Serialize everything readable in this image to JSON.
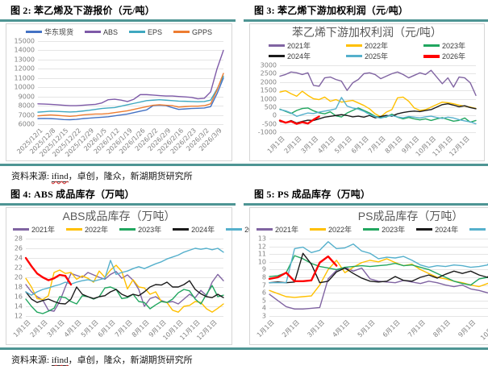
{
  "figures": [
    {
      "header": "图 2: 苯乙烯及下游报价（元/吨）"
    },
    {
      "header": "图 3: 苯乙烯下游加权利润（元/吨）"
    },
    {
      "header": "图 4: ABS 成品库存（万吨）"
    },
    {
      "header": "图 5: PS 成品库存（万吨）"
    }
  ],
  "source": {
    "prefix": "资料来源: ",
    "link": "ifind",
    "rest": "，卓创，隆众，新湖期货研究所"
  },
  "colors": {
    "accent_teal_rule": "#4E9594",
    "panel_border": "#D6D6D6",
    "grid": "#E5E5E5",
    "axis_text": "#808080",
    "title_text": "#595959"
  },
  "chart_data": [
    {
      "type": "line",
      "title": "",
      "legend_position": "top",
      "ylim": [
        6000,
        15000
      ],
      "y_step": 1000,
      "grid": true,
      "last_label_frac": 0.9655,
      "categories": [
        "2025/12/1",
        "2025/12/8",
        "2025/12/15",
        "2025/12/22",
        "2025/12/29",
        "2026/1/5",
        "2026/1/12",
        "2026/1/19",
        "2026/1/26",
        "2026/2/2",
        "2026/2/9",
        "2026/2/16",
        "2026/2/23",
        "2026/3/2",
        "2026/3/9"
      ],
      "series": [
        {
          "name": "华东现货",
          "color": "#4472C4",
          "width": 1.4,
          "values": [
            6600,
            6620,
            6600,
            6560,
            6500,
            6480,
            6520,
            6600,
            6650,
            6700,
            6750,
            6800,
            6900,
            7000,
            7100,
            7250,
            7400,
            7550,
            8000,
            8050,
            8000,
            7800,
            7600,
            7650,
            7700,
            7720,
            7750,
            7900,
            9300,
            11000
          ]
        },
        {
          "name": "ABS",
          "color": "#7E5AA8",
          "width": 1.4,
          "values": [
            8200,
            8180,
            8150,
            8100,
            8050,
            8000,
            8000,
            8050,
            8100,
            8150,
            8300,
            8650,
            8700,
            8600,
            8450,
            8700,
            9200,
            9200,
            9150,
            9100,
            9050,
            9050,
            9000,
            8950,
            8900,
            8750,
            8800,
            9500,
            12000,
            14000
          ]
        },
        {
          "name": "EPS",
          "color": "#3FA8C0",
          "width": 1.4,
          "values": [
            7300,
            7350,
            7400,
            7380,
            7350,
            7320,
            7350,
            7420,
            7500,
            7600,
            7700,
            7750,
            7800,
            7950,
            8100,
            8250,
            8400,
            8550,
            8600,
            8650,
            8600,
            8550,
            8500,
            8480,
            8450,
            8430,
            8450,
            8600,
            9800,
            11200
          ]
        },
        {
          "name": "GPPS",
          "color": "#ED7D31",
          "width": 1.4,
          "values": [
            6900,
            6950,
            7000,
            6950,
            6900,
            6850,
            6900,
            7000,
            7050,
            7100,
            7100,
            7150,
            7250,
            7350,
            7450,
            7600,
            7750,
            7900,
            8050,
            8100,
            8050,
            8000,
            7850,
            7900,
            7950,
            7950,
            8000,
            8200,
            9700,
            11500
          ]
        }
      ]
    },
    {
      "type": "line",
      "title": "苯乙烯下游加权利润（元/吨）",
      "legend_position": "top-two-rows",
      "ylim": [
        -1000,
        3000
      ],
      "y_step": 500,
      "grid": true,
      "last_label_frac": 0.9429,
      "categories": [
        "1月1日",
        "2月1日",
        "3月1日",
        "4月1日",
        "5月1日",
        "6月1日",
        "7月1日",
        "8月1日",
        "9月1日",
        "10月1日",
        "11月1日",
        "12月1日"
      ],
      "series": [
        {
          "name": "2021年",
          "color": "#8064A2",
          "width": 1.4,
          "values": [
            2350,
            2450,
            2600,
            2550,
            2450,
            2550,
            1800,
            1750,
            2250,
            2300,
            2150,
            2050,
            1500,
            1950,
            2150,
            2500,
            2550,
            2450,
            2200,
            2350,
            2500,
            2600,
            2450,
            2250,
            2400,
            2550,
            2450,
            2700,
            2300,
            1900,
            2250,
            1700,
            2300,
            2250,
            1950,
            1200
          ]
        },
        {
          "name": "2022年",
          "color": "#FFC000",
          "width": 1.4,
          "values": [
            1400,
            1480,
            1300,
            1150,
            1450,
            1200,
            1000,
            950,
            1100,
            850,
            950,
            800,
            850,
            900,
            750,
            600,
            400,
            100,
            -80,
            200,
            350,
            1050,
            1100,
            850,
            450,
            300,
            350,
            500,
            650,
            800,
            760,
            700,
            620,
            560,
            500,
            420
          ]
        },
        {
          "name": "2023年",
          "color": "#21A65F",
          "width": 1.4,
          "values": [
            380,
            250,
            120,
            300,
            420,
            450,
            280,
            160,
            100,
            220,
            -20,
            -90,
            150,
            300,
            450,
            300,
            150,
            -50,
            -120,
            -90,
            80,
            -100,
            -200,
            -120,
            -200,
            -260,
            -200,
            -300,
            -200,
            -130,
            -240,
            -340,
            -290,
            -150,
            -400,
            -300
          ]
        },
        {
          "name": "2024年",
          "color": "#1A1A1A",
          "width": 1.4,
          "values": [
            -350,
            -430,
            -300,
            -450,
            -350,
            -280,
            -300,
            -200,
            -100,
            -50,
            0,
            50,
            0,
            -80,
            -40,
            -100,
            0,
            -140,
            -60,
            0,
            -40,
            100,
            180,
            230,
            260,
            230,
            300,
            350,
            500,
            650,
            700,
            620,
            520,
            580,
            470,
            400
          ]
        },
        {
          "name": "2025年",
          "color": "#55B0CC",
          "width": 1.4,
          "values": [
            350,
            280,
            150,
            -50,
            50,
            150,
            120,
            200,
            260,
            320,
            400,
            1080,
            560,
            450,
            380,
            250,
            60,
            -80,
            -160,
            -60,
            0,
            -90,
            -140,
            -60,
            -100,
            -150,
            -80,
            -40,
            -120,
            -180,
            -100,
            -150,
            -250,
            -320,
            -380,
            -500
          ]
        },
        {
          "name": "2026年",
          "color": "#FF0000",
          "width": 2.4,
          "domain": 36,
          "values": [
            -300,
            -430,
            -350,
            -500,
            -400,
            -480,
            -250,
            -60
          ]
        }
      ]
    },
    {
      "type": "line",
      "title": "ABS成品库存（万吨）",
      "legend_position": "top",
      "ylim": [
        12,
        28
      ],
      "y_step": 2,
      "grid": true,
      "last_label_frac": 0.9429,
      "categories": [
        "1月1日",
        "2月1日",
        "3月1日",
        "4月1日",
        "5月1日",
        "6月1日",
        "7月1日",
        "8月1日",
        "9月1日",
        "10月1日",
        "11月1日",
        "12月1日"
      ],
      "series": [
        {
          "name": "2021年",
          "color": "#8064A2",
          "width": 1.4,
          "values": [
            18.5,
            17.0,
            16.0,
            15.3,
            13.2,
            13.0,
            15.0,
            18.0,
            20.8,
            20.4,
            20.0,
            21.0,
            20.5,
            20.0,
            19.6,
            20.6,
            21.2,
            19.8,
            20.5,
            19.4,
            17.5,
            14.0,
            15.6,
            16.0,
            15.2,
            14.8,
            15.0,
            14.5,
            15.5,
            16.5,
            15.8,
            17.3,
            16.2,
            19.0,
            20.6,
            19.3
          ]
        },
        {
          "name": "2022年",
          "color": "#FFC000",
          "width": 1.4,
          "values": [
            19.8,
            18.0,
            15.6,
            15.4,
            16.2,
            21.0,
            21.5,
            20.8,
            21.0,
            19.6,
            20.3,
            19.8,
            19.0,
            21.3,
            20.0,
            21.5,
            22.5,
            21.2,
            17.6,
            19.5,
            18.0,
            17.8,
            16.5,
            17.0,
            15.0,
            14.8,
            13.2,
            12.8,
            14.0,
            14.2,
            15.0,
            14.8,
            13.5,
            12.8,
            13.6,
            14.5
          ]
        },
        {
          "name": "2023年",
          "color": "#21A65F",
          "width": 1.4,
          "values": [
            15.5,
            14.0,
            12.8,
            12.5,
            13.0,
            13.6,
            16.0,
            15.8,
            15.0,
            14.5,
            16.2,
            16.0,
            15.5,
            16.0,
            17.8,
            18.0,
            17.5,
            15.6,
            15.8,
            16.5,
            15.0,
            14.8,
            13.5,
            14.3,
            15.0,
            14.8,
            15.5,
            16.8,
            17.5,
            17.2,
            15.5,
            14.5,
            16.5,
            18.3,
            16.0,
            16.3
          ]
        },
        {
          "name": "2024年",
          "color": "#1A1A1A",
          "width": 1.4,
          "values": [
            17.0,
            15.5,
            14.8,
            15.2,
            15.5,
            15.0,
            14.6,
            14.5,
            15.5,
            18.0,
            16.5,
            16.0,
            15.6,
            16.0,
            16.2,
            17.0,
            17.5,
            16.5,
            16.0,
            16.5,
            16.2,
            17.0,
            18.0,
            18.5,
            18.4,
            19.0,
            18.0,
            18.0,
            18.5,
            19.3,
            17.5,
            16.6,
            16.0,
            15.8,
            16.5,
            15.8
          ]
        },
        {
          "name": "2025年",
          "color": "#55B0CC",
          "width": 1.4,
          "values": [
            17.0,
            16.3,
            17.0,
            17.5,
            17.8,
            18.2,
            18.5,
            19.0,
            18.6,
            19.0,
            19.3,
            19.5,
            19.2,
            19.5,
            19.8,
            23.5,
            20.6,
            21.0,
            21.3,
            21.8,
            22.2,
            21.8,
            22.3,
            22.8,
            23.2,
            23.8,
            24.2,
            24.6,
            25.2,
            25.6,
            26.0,
            25.8,
            26.0,
            25.7,
            26.0,
            25.2
          ]
        },
        {
          "name": "2026年",
          "color": "#FF0000",
          "width": 2.4,
          "domain": 36,
          "values": [
            24.0,
            22.3,
            20.8,
            20.0,
            19.4,
            19.8,
            20.5,
            20.3,
            18.5
          ]
        }
      ]
    },
    {
      "type": "line",
      "title": "PS成品库存（万吨）",
      "legend_position": "top",
      "ylim": [
        3,
        13
      ],
      "y_step": 1,
      "grid": true,
      "last_label_frac": 0.9429,
      "categories": [
        "1月1日",
        "2月1日",
        "3月1日",
        "4月1日",
        "5月1日",
        "6月1日",
        "7月1日",
        "8月1日",
        "9月1日",
        "10月1日",
        "11月1日",
        "12月1日"
      ],
      "series": [
        {
          "name": "2021年",
          "color": "#8064A2",
          "width": 1.4,
          "values": [
            5.8,
            5.0,
            4.2,
            3.9,
            3.9,
            4.0,
            4.1,
            7.8,
            8.9,
            9.3,
            8.8,
            9.2,
            7.8,
            7.5,
            7.4,
            7.3,
            7.6,
            7.4,
            7.2,
            7.5,
            7.3,
            7.0,
            6.8,
            7.0,
            6.5,
            6.3,
            6.0,
            5.8,
            5.6,
            5.6,
            6.6,
            5.9,
            6.2,
            6.1,
            6.2,
            6.2
          ]
        },
        {
          "name": "2022年",
          "color": "#FFC000",
          "width": 1.4,
          "values": [
            6.3,
            5.9,
            5.5,
            5.4,
            5.5,
            5.6,
            7.0,
            9.0,
            10.2,
            8.6,
            9.3,
            9.9,
            10.2,
            10.0,
            10.4,
            9.9,
            9.5,
            9.7,
            9.0,
            8.5,
            8.0,
            7.8,
            7.5,
            7.3,
            7.0,
            6.8,
            7.2,
            7.8,
            7.0,
            6.5,
            6.8,
            7.0,
            7.3,
            7.6,
            8.0,
            8.3
          ]
        },
        {
          "name": "2023年",
          "color": "#21A65F",
          "width": 1.4,
          "values": [
            8.1,
            8.2,
            8.6,
            10.8,
            10.4,
            9.8,
            9.4,
            9.2,
            9.0,
            9.3,
            9.4,
            9.5,
            9.4,
            9.5,
            9.6,
            9.8,
            9.5,
            9.6,
            9.3,
            9.0,
            8.5,
            8.0,
            7.5,
            7.2,
            7.0,
            7.8,
            8.0,
            7.9,
            7.4,
            6.5,
            7.3,
            7.2,
            7.3,
            7.4,
            7.3,
            7.2
          ]
        },
        {
          "name": "2024年",
          "color": "#1A1A1A",
          "width": 1.4,
          "values": [
            7.3,
            7.4,
            7.3,
            7.4,
            11.1,
            9.7,
            7.3,
            7.5,
            8.7,
            9.2,
            8.5,
            7.9,
            7.5,
            7.4,
            7.5,
            8.1,
            7.6,
            7.5,
            8.0,
            8.3,
            7.9,
            8.4,
            8.8,
            8.5,
            8.8,
            8.3,
            8.0,
            9.3,
            9.6,
            9.4,
            9.2,
            8.9,
            8.6,
            8.0,
            7.6,
            7.5
          ]
        },
        {
          "name": "2025年",
          "color": "#55B0CC",
          "width": 1.4,
          "values": [
            7.3,
            7.3,
            7.3,
            11.7,
            11.9,
            11.2,
            11.5,
            12.6,
            11.7,
            11.8,
            12.3,
            11.4,
            11.1,
            10.4,
            10.6,
            10.5,
            10.7,
            10.2,
            9.6,
            9.3,
            9.5,
            9.4,
            9.6,
            9.5,
            9.3,
            9.4,
            9.6,
            11.2,
            10.9,
            9.8,
            9.4,
            9.3,
            9.8,
            10.4,
            9.5,
            8.2
          ]
        },
        {
          "name": "2026年",
          "color": "#FF0000",
          "width": 2.4,
          "domain": 36,
          "values": [
            7.8,
            8.0,
            8.6,
            7.5,
            7.5,
            7.6,
            9.9,
            10.7,
            9.5
          ]
        }
      ]
    }
  ]
}
